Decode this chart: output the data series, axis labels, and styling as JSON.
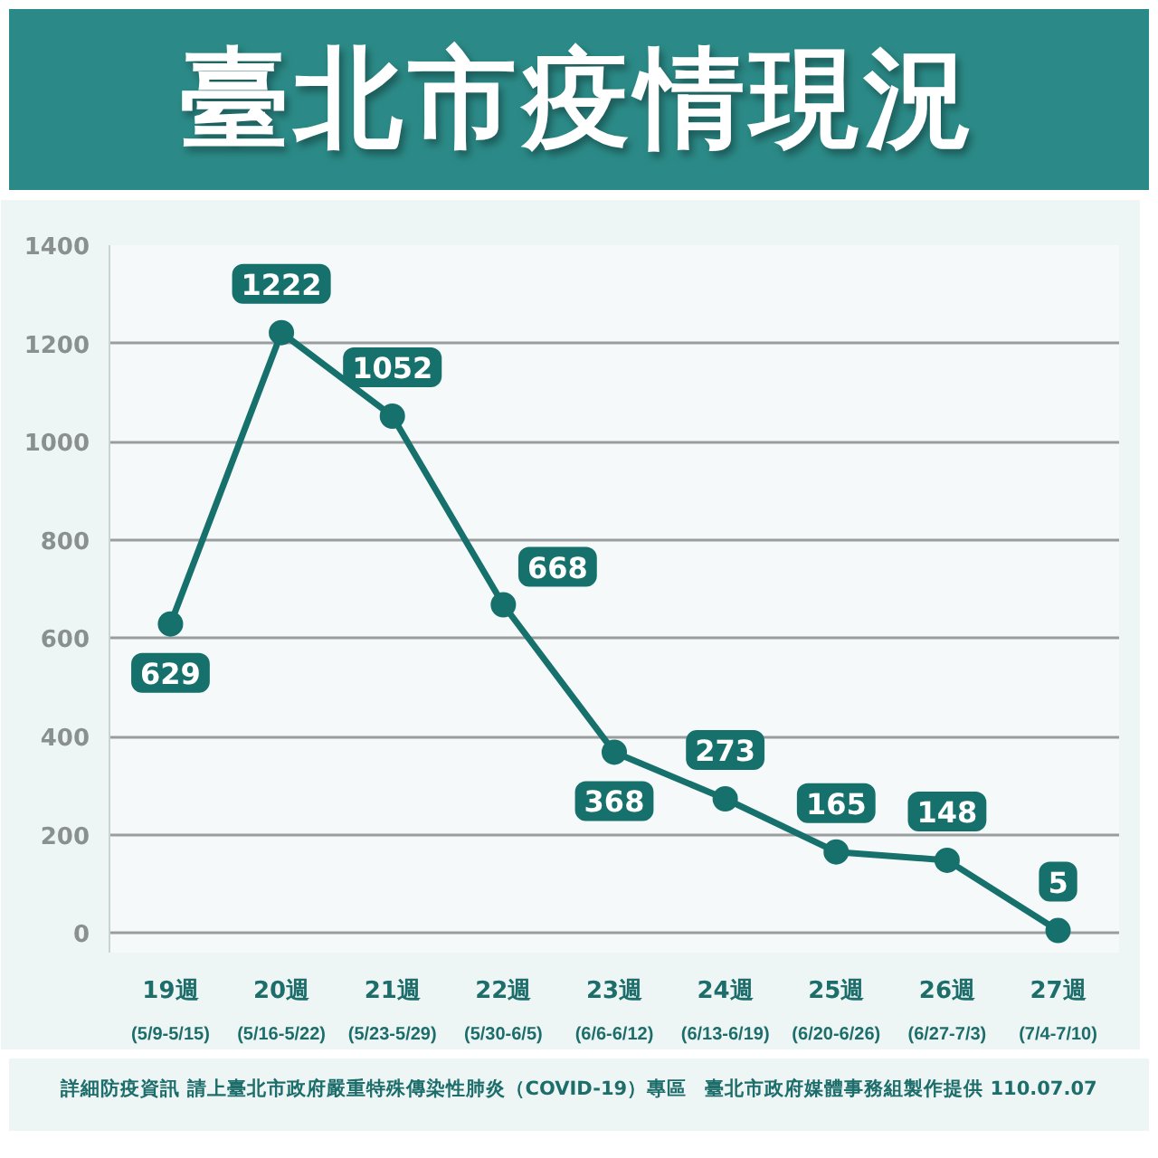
{
  "chart_data": {
    "type": "line",
    "title": "臺北市疫情現況",
    "categories": [
      "19週\n(5/9-5/15)",
      "20週\n(5/16-5/22)",
      "21週\n(5/23-5/29)",
      "22週\n(5/30-6/5)",
      "23週\n(6/6-6/12)",
      "24週\n(6/13-6/19)",
      "25週\n(6/20-6/26)",
      "26週\n(6/27-7/3)",
      "27週\n(7/4-7/10)"
    ],
    "series": [
      {
        "color": "#16706c",
        "values": [
          629,
          1222,
          1052,
          668,
          368,
          273,
          165,
          148,
          5
        ]
      }
    ],
    "ylim": [
      -40,
      1400
    ],
    "yticks": [
      0,
      200,
      400,
      600,
      800,
      1000,
      1200,
      1400
    ],
    "grid": "y",
    "marker": "circle",
    "line_style": "solid",
    "data_labels": true,
    "annotations": [
      "詳細防疫資訊 請上臺北市政府嚴重特殊傳染性肺炎（COVID-19）專區",
      "臺北市政府媒體事務組製作提供 110.07.07"
    ]
  }
}
